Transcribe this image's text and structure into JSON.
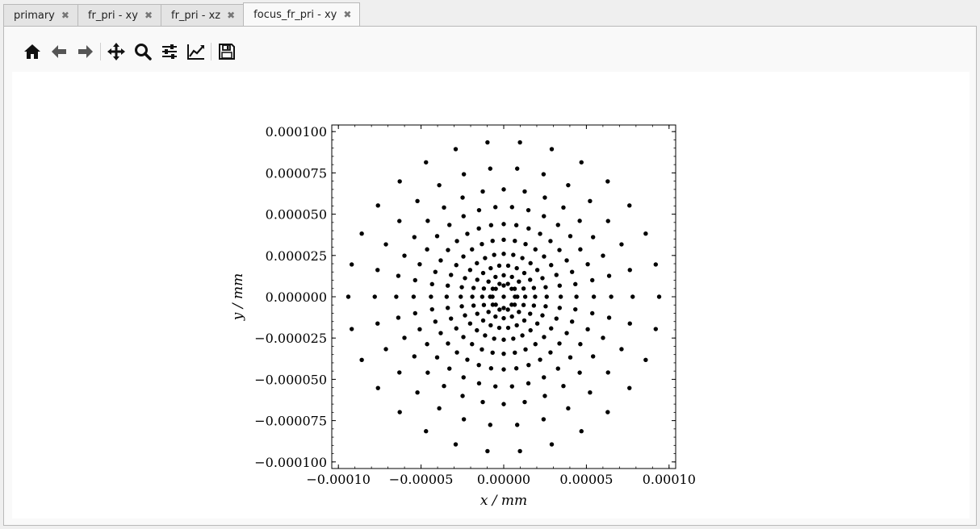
{
  "tabs": [
    {
      "label": "primary",
      "active": false
    },
    {
      "label": "fr_pri - xy",
      "active": false
    },
    {
      "label": "fr_pri - xz",
      "active": false
    },
    {
      "label": "focus_fr_pri - xy",
      "active": true
    }
  ],
  "toolbar": {
    "buttons": [
      "home-icon",
      "back-icon",
      "forward-icon",
      "pan-icon",
      "zoom-icon",
      "configure-subplots-icon",
      "edit-axis-icon",
      "save-icon"
    ]
  },
  "chart_data": {
    "type": "scatter",
    "title": "",
    "xlabel": "x / mm",
    "ylabel": "y / mm",
    "xlim": [
      -0.000104,
      0.000104
    ],
    "ylim": [
      -0.000104,
      0.000104
    ],
    "xticks": [
      "−0.00010",
      "−0.00005",
      "0.00000",
      "0.00005",
      "0.00010"
    ],
    "xtick_values": [
      -0.0001,
      -5e-05,
      0,
      5e-05,
      0.0001
    ],
    "yticks": [
      "0.000100",
      "0.000075",
      "0.000050",
      "0.000025",
      "0.000000",
      "−0.000025",
      "−0.000050",
      "−0.000075",
      "−0.000100"
    ],
    "ytick_values": [
      0.0001,
      7.5e-05,
      5e-05,
      2.5e-05,
      0,
      -2.5e-05,
      -5e-05,
      -7.5e-05,
      -0.0001
    ],
    "marker_color": "#000000",
    "grid": false,
    "center_point": [
      0,
      0
    ],
    "rings": [
      {
        "radius": 6.8e-06,
        "points": 8
      },
      {
        "radius": 8.2e-06,
        "points": 10
      },
      {
        "radius": 1.3e-05,
        "points": 16
      },
      {
        "radius": 1.9e-05,
        "points": 22
      },
      {
        "radius": 2.6e-05,
        "points": 28
      },
      {
        "radius": 3.45e-05,
        "points": 32
      },
      {
        "radius": 4.4e-05,
        "points": 36
      },
      {
        "radius": 5.45e-05,
        "points": 34
      },
      {
        "radius": 6.5e-05,
        "points": 32
      },
      {
        "radius": 7.8e-05,
        "points": 30
      },
      {
        "radius": 9.4e-05,
        "points": 30
      }
    ]
  }
}
